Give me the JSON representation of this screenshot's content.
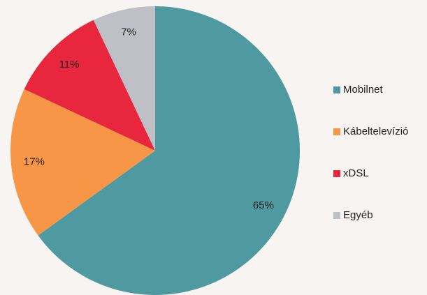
{
  "chart_data": {
    "type": "pie",
    "categories": [
      "Mobilnet",
      "Kábeltelevízió",
      "xDSL",
      "Egyéb"
    ],
    "values": [
      65,
      17,
      11,
      7
    ],
    "value_labels": [
      "65%",
      "17%",
      "11%",
      "7%"
    ],
    "colors": [
      "#4f9aa0",
      "#f79646",
      "#e8263d",
      "#bfc0c5"
    ],
    "legend": "right"
  }
}
